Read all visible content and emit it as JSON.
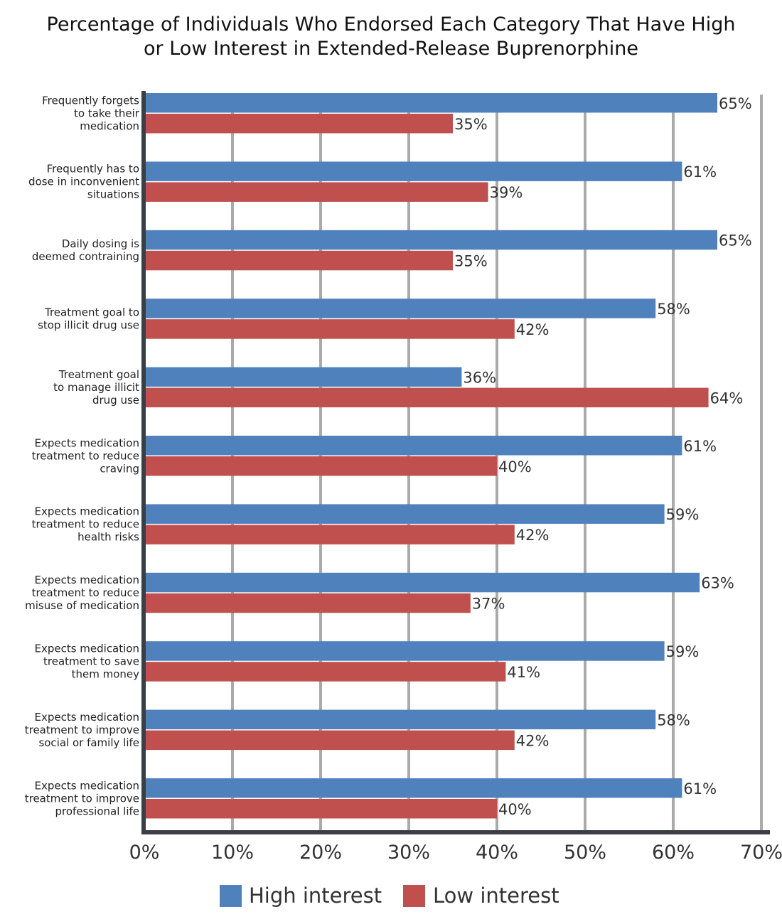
{
  "chart_data": {
    "type": "bar",
    "orientation": "horizontal",
    "title_lines": [
      "Percentage of Individuals Who Endorsed Each Category That Have High",
      "or Low Interest in Extended-Release Buprenorphine"
    ],
    "categories": [
      [
        "Frequently forgets",
        "to take their",
        "medication"
      ],
      [
        "Frequently has to",
        "dose in inconvenient",
        "situations"
      ],
      [
        "Daily dosing is",
        "deemed contraining"
      ],
      [
        "Treatment goal to",
        "stop illicit drug use"
      ],
      [
        "Treatment goal",
        "to manage illicit",
        "drug use"
      ],
      [
        "Expects medication",
        "treatment to reduce",
        "craving"
      ],
      [
        "Expects medication",
        "treatment to reduce",
        "health risks"
      ],
      [
        "Expects medication",
        "treatment to reduce",
        "misuse of medication"
      ],
      [
        "Expects medication",
        "treatment to save",
        "them money"
      ],
      [
        "Expects medication",
        "treatment to improve",
        "social or family life"
      ],
      [
        "Expects medication",
        "treatment to improve",
        "professional life"
      ]
    ],
    "series": [
      {
        "name": "High interest",
        "color": "#4f81bd",
        "values": [
          65,
          61,
          65,
          58,
          36,
          61,
          59,
          63,
          59,
          58,
          61
        ],
        "labels": [
          "65%",
          "61%",
          "65%",
          "58%",
          "36%",
          "61%",
          "59%",
          "63%",
          "59%",
          "58%",
          "61%"
        ]
      },
      {
        "name": "Low interest",
        "color": "#c0504d",
        "values": [
          35,
          39,
          35,
          42,
          64,
          40,
          42,
          37,
          41,
          42,
          40
        ],
        "labels": [
          "35%",
          "39%",
          "35%",
          "42%",
          "64%",
          "40%",
          "42%",
          "37%",
          "41%",
          "42%",
          "40%"
        ]
      }
    ],
    "xlim": [
      0,
      70
    ],
    "xticks": [
      0,
      10,
      20,
      30,
      40,
      50,
      60,
      70
    ],
    "xtick_labels": [
      "0%",
      "10%",
      "20%",
      "30%",
      "40%",
      "50%",
      "60%",
      "70%"
    ],
    "grid": true,
    "legend_position": "bottom"
  }
}
